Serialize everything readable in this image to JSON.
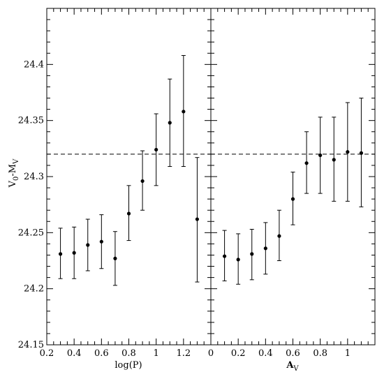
{
  "chart_data": [
    {
      "type": "scatter",
      "title": "",
      "xlabel": "log(P)",
      "ylabel": "V_0-M_V",
      "xlim": [
        0.2,
        1.4
      ],
      "ylim": [
        24.15,
        24.45
      ],
      "x_ticks": [
        "0.2",
        "0.4",
        "0.6",
        "0.8",
        "1",
        "1.2"
      ],
      "y_ticks": [
        "24.15",
        "24.2",
        "24.25",
        "24.3",
        "24.35",
        "24.4"
      ],
      "reference_line": 24.32,
      "grid": false,
      "points": [
        {
          "x": 0.3,
          "y": 24.231,
          "err_low": 24.209,
          "err_high": 24.254
        },
        {
          "x": 0.4,
          "y": 24.232,
          "err_low": 24.209,
          "err_high": 24.255
        },
        {
          "x": 0.5,
          "y": 24.239,
          "err_low": 24.216,
          "err_high": 24.262
        },
        {
          "x": 0.6,
          "y": 24.242,
          "err_low": 24.218,
          "err_high": 24.266
        },
        {
          "x": 0.7,
          "y": 24.227,
          "err_low": 24.203,
          "err_high": 24.251
        },
        {
          "x": 0.8,
          "y": 24.267,
          "err_low": 24.243,
          "err_high": 24.292
        },
        {
          "x": 0.9,
          "y": 24.296,
          "err_low": 24.27,
          "err_high": 24.323
        },
        {
          "x": 1.0,
          "y": 24.324,
          "err_low": 24.292,
          "err_high": 24.356
        },
        {
          "x": 1.1,
          "y": 24.348,
          "err_low": 24.309,
          "err_high": 24.387
        },
        {
          "x": 1.2,
          "y": 24.358,
          "err_low": 24.309,
          "err_high": 24.408
        },
        {
          "x": 1.3,
          "y": 24.262,
          "err_low": 24.206,
          "err_high": 24.317
        }
      ]
    },
    {
      "type": "scatter",
      "title": "",
      "xlabel": "A_V",
      "ylabel": "",
      "xlim": [
        0.0,
        1.2
      ],
      "ylim": [
        24.15,
        24.45
      ],
      "x_ticks": [
        "0",
        "0.2",
        "0.4",
        "0.6",
        "0.8",
        "1"
      ],
      "reference_line": 24.32,
      "grid": false,
      "points": [
        {
          "x": 0.1,
          "y": 24.229,
          "err_low": 24.207,
          "err_high": 24.252
        },
        {
          "x": 0.2,
          "y": 24.226,
          "err_low": 24.204,
          "err_high": 24.249
        },
        {
          "x": 0.3,
          "y": 24.231,
          "err_low": 24.208,
          "err_high": 24.253
        },
        {
          "x": 0.4,
          "y": 24.236,
          "err_low": 24.213,
          "err_high": 24.259
        },
        {
          "x": 0.5,
          "y": 24.247,
          "err_low": 24.225,
          "err_high": 24.27
        },
        {
          "x": 0.6,
          "y": 24.28,
          "err_low": 24.257,
          "err_high": 24.304
        },
        {
          "x": 0.7,
          "y": 24.312,
          "err_low": 24.285,
          "err_high": 24.34
        },
        {
          "x": 0.8,
          "y": 24.319,
          "err_low": 24.285,
          "err_high": 24.353
        },
        {
          "x": 0.9,
          "y": 24.315,
          "err_low": 24.278,
          "err_high": 24.353
        },
        {
          "x": 1.0,
          "y": 24.322,
          "err_low": 24.278,
          "err_high": 24.366
        },
        {
          "x": 1.1,
          "y": 24.321,
          "err_low": 24.273,
          "err_high": 24.37
        }
      ]
    }
  ]
}
